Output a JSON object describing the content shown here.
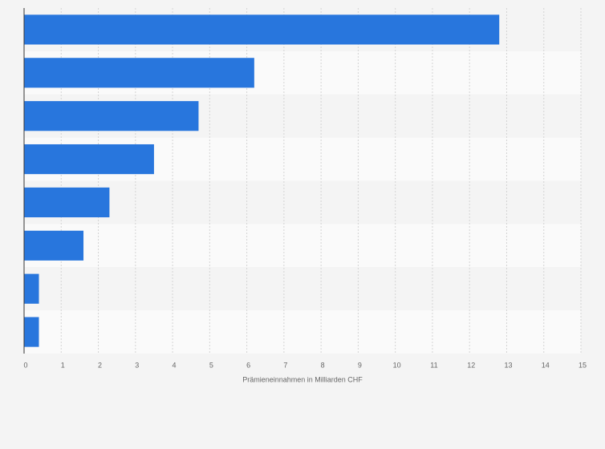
{
  "chart_data": {
    "type": "bar",
    "orientation": "horizontal",
    "x_label": "Prämieneinnahmen in Milliarden CHF",
    "categories": [
      null,
      null,
      null,
      null,
      null,
      null,
      null,
      null
    ],
    "values": [
      12.8,
      6.2,
      4.7,
      3.5,
      2.3,
      1.6,
      0.4,
      0.4
    ],
    "color": "#2876dd",
    "xlim": [
      0,
      15
    ],
    "xticks": [
      0,
      1,
      2,
      3,
      4,
      5,
      6,
      7,
      8,
      9,
      10,
      11,
      12,
      13,
      14,
      15
    ],
    "grid": true
  }
}
